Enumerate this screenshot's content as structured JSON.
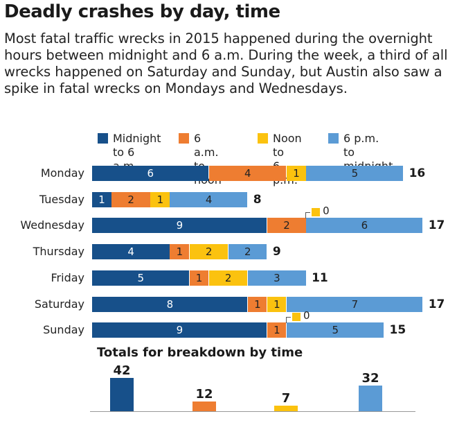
{
  "title": "Deadly crashes by day, time",
  "subtitle": "Most fatal traffic wrecks in 2015 happened during the overnight hours between midnight and 6 a.m. During the week, a third of all wrecks happened on Saturday and Sunday, but Austin also saw a spike in fatal wrecks on Mondays and Wednesdays.",
  "colors": {
    "midnight_6am": "#17508a",
    "6am_noon": "#ee7d31",
    "noon_6pm": "#fbc20f",
    "6pm_midnight": "#5b9bd5"
  },
  "chart_data": [
    {
      "type": "bar",
      "orientation": "horizontal",
      "stacked": true,
      "categories": [
        "Monday",
        "Tuesday",
        "Wednesday",
        "Thursday",
        "Friday",
        "Saturday",
        "Sunday"
      ],
      "series": [
        {
          "name": "Midnight\nto 6 a.m.",
          "color": "#17508a",
          "values": [
            6,
            1,
            9,
            4,
            5,
            8,
            9
          ]
        },
        {
          "name": "6 a.m. to\nnoon",
          "color": "#ee7d31",
          "values": [
            4,
            2,
            2,
            1,
            1,
            1,
            1
          ]
        },
        {
          "name": "Noon to\n6 p.m.",
          "color": "#fbc20f",
          "values": [
            1,
            1,
            0,
            2,
            2,
            1,
            0
          ]
        },
        {
          "name": "6 p.m. to\nmidnight",
          "color": "#5b9bd5",
          "values": [
            5,
            4,
            6,
            2,
            3,
            7,
            5
          ]
        }
      ],
      "totals": [
        16,
        8,
        17,
        9,
        11,
        17,
        15
      ],
      "zero_annotation": "0",
      "legend_position": "top",
      "grid": false,
      "xlim": [
        0,
        17
      ]
    },
    {
      "type": "bar",
      "title": "Totals for breakdown by time",
      "categories": [
        "Midnight\nto 6 a.m.",
        "6 a.m. to\nnoon",
        "Noon to\n6 p.m.",
        "6 p.m. to\nmidnight"
      ],
      "values": [
        42,
        12,
        7,
        32
      ],
      "colors": [
        "#17508a",
        "#ee7d31",
        "#fbc20f",
        "#5b9bd5"
      ],
      "ylim": [
        0,
        42
      ],
      "grid": false
    }
  ]
}
